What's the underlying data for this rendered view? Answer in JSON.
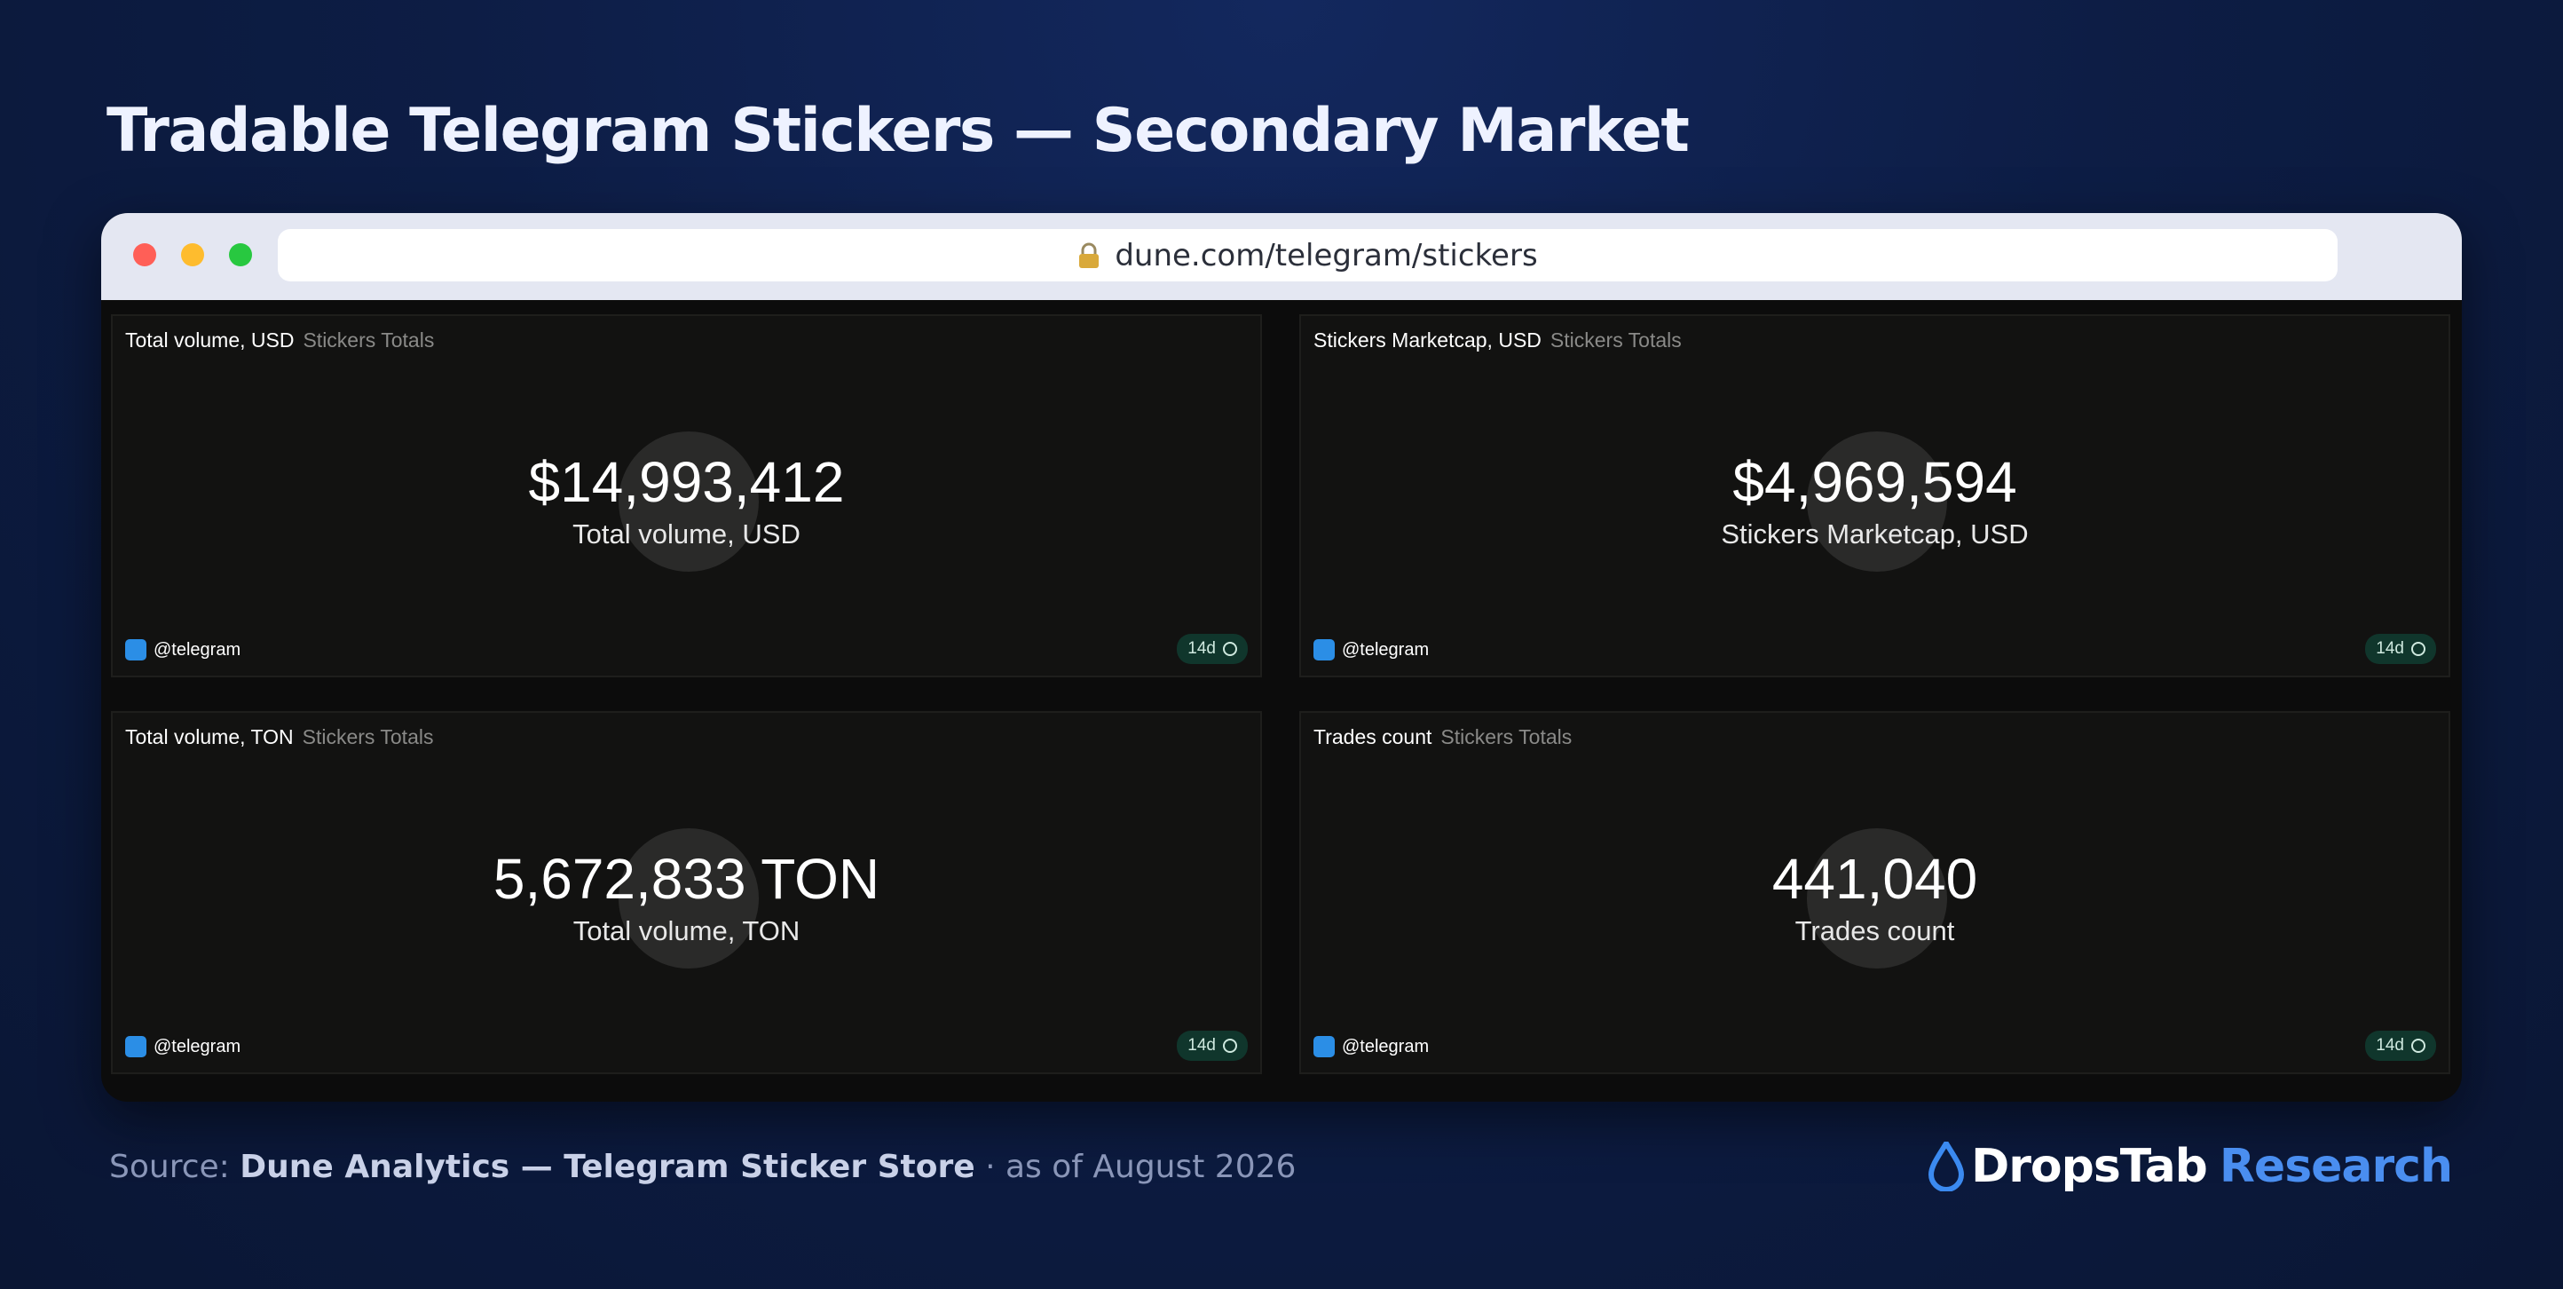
{
  "header": {
    "title": "Tradable Telegram Stickers — Secondary Market"
  },
  "browser": {
    "url": "dune.com/telegram/stickers"
  },
  "panels": [
    {
      "title": "Total volume, USD",
      "subtitle": "Stickers Totals",
      "value": "$14,993,412",
      "label": "Total volume, USD",
      "user": "@telegram",
      "age": "14d"
    },
    {
      "title": "Stickers Marketcap, USD",
      "subtitle": "Stickers Totals",
      "value": "$4,969,594",
      "label": "Stickers Marketcap, USD",
      "user": "@telegram",
      "age": "14d"
    },
    {
      "title": "Total volume, TON",
      "subtitle": "Stickers Totals",
      "value": "5,672,833 TON",
      "label": "Total volume, TON",
      "user": "@telegram",
      "age": "14d"
    },
    {
      "title": "Trades count",
      "subtitle": "Stickers Totals",
      "value": "441,040",
      "label": "Trades count",
      "user": "@telegram",
      "age": "14d"
    }
  ],
  "footer": {
    "source_prefix": "Source:",
    "source_name": "Dune Analytics — Telegram Sticker Store",
    "source_suffix": "· as of August 2026",
    "brand": "DropsTab",
    "brand_suffix": "Research"
  }
}
